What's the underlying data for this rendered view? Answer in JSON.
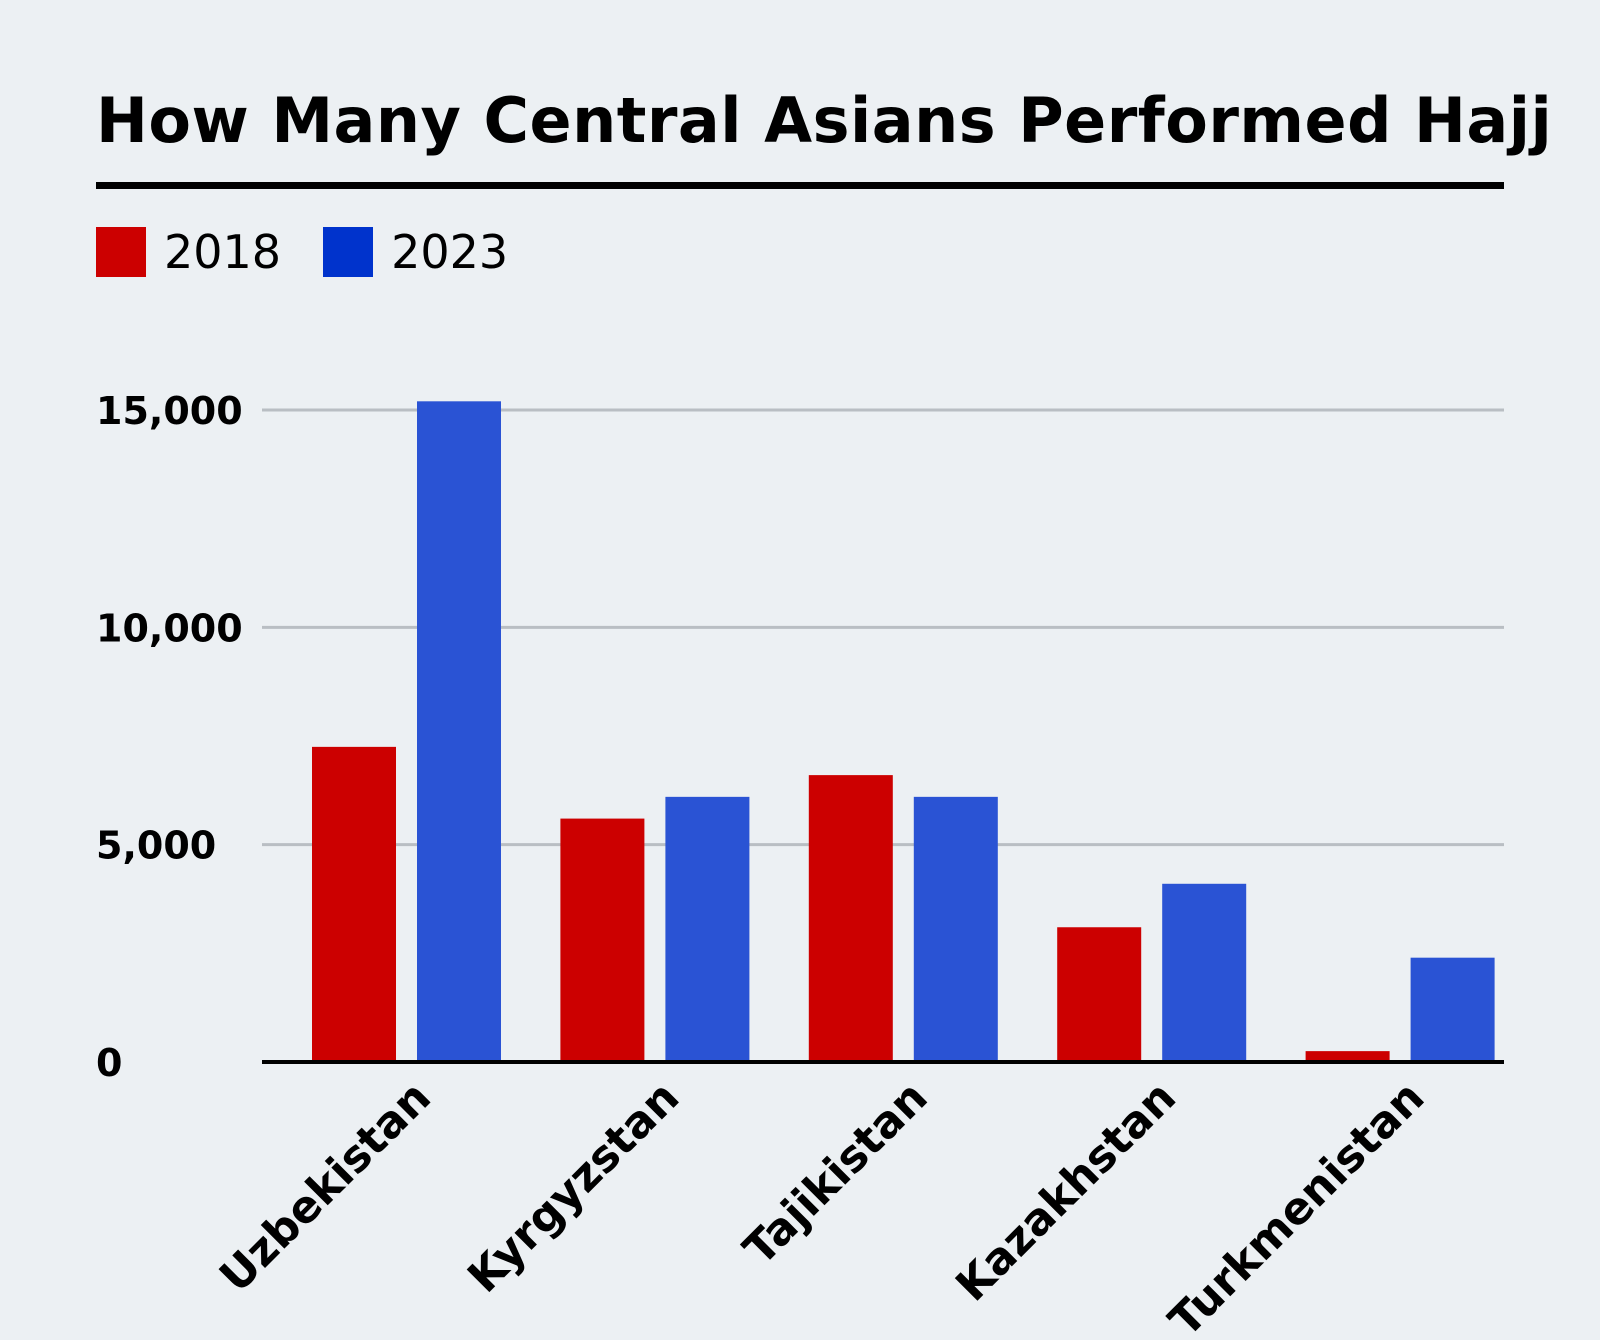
{
  "chart_data": {
    "type": "bar",
    "title": "How Many Central Asians Performed Hajj",
    "xlabel": "",
    "ylabel": "",
    "categories": [
      "Uzbekistan",
      "Kyrgyzstan",
      "Tajikistan",
      "Kazakhstan",
      "Turkmenistan"
    ],
    "series": [
      {
        "name": "2018",
        "color": "#cc0000",
        "values": [
          7250,
          5600,
          6600,
          3100,
          250
        ]
      },
      {
        "name": "2023",
        "color": "#2a53d4",
        "values": [
          15200,
          6100,
          6100,
          4100,
          2400
        ]
      }
    ],
    "ylim": [
      0,
      15000
    ],
    "yticks": [
      0,
      5000,
      10000,
      15000
    ],
    "ytick_labels": [
      "0",
      "5,000",
      "10,000",
      "15,000"
    ],
    "grid": true,
    "legend_position": "top-left"
  },
  "legend": {
    "colors": [
      "#cc0000",
      "#0033cc"
    ]
  }
}
